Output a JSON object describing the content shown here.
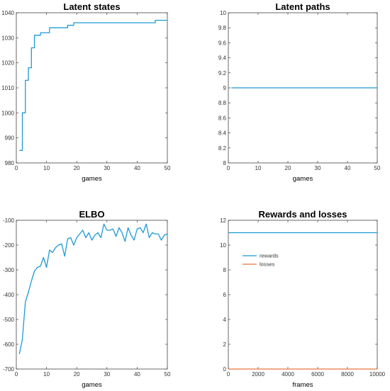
{
  "colors": {
    "blue": "#1f9ad6",
    "orange": "#e8743b"
  },
  "chart_data": [
    {
      "type": "line",
      "title": "Latent states",
      "xlabel": "games",
      "ylabel": "",
      "xlim": [
        0,
        50
      ],
      "ylim": [
        980,
        1040
      ],
      "xticks": [
        0,
        10,
        20,
        30,
        40,
        50
      ],
      "yticks": [
        980,
        990,
        1000,
        1010,
        1020,
        1030,
        1040
      ],
      "ytick_labels": [
        "980",
        "990",
        "1000",
        "1010",
        "1020",
        "1030",
        "1040"
      ],
      "grid": false,
      "step": true,
      "series": [
        {
          "color": "#1f9ad6",
          "x": [
            1,
            2,
            3,
            4,
            5,
            6,
            7,
            8,
            9,
            10,
            11,
            12,
            13,
            14,
            15,
            16,
            17,
            18,
            19,
            20,
            21,
            22,
            23,
            24,
            25,
            26,
            27,
            28,
            29,
            30,
            31,
            32,
            33,
            34,
            35,
            36,
            37,
            38,
            39,
            40,
            41,
            42,
            43,
            44,
            45,
            46,
            47,
            48,
            49,
            50
          ],
          "y": [
            985,
            1000,
            1013,
            1018,
            1026,
            1031,
            1031,
            1032,
            1032,
            1032,
            1034,
            1034,
            1034,
            1034,
            1034,
            1034,
            1035,
            1035,
            1036,
            1036,
            1036,
            1036,
            1036,
            1036,
            1036,
            1036,
            1036,
            1036,
            1036,
            1036,
            1036,
            1036,
            1036,
            1036,
            1036,
            1036,
            1036,
            1036,
            1036,
            1036,
            1036,
            1036,
            1036,
            1036,
            1036,
            1037,
            1037,
            1037,
            1037,
            1037
          ]
        }
      ]
    },
    {
      "type": "line",
      "title": "Latent paths",
      "xlabel": "games",
      "ylabel": "",
      "xlim": [
        0,
        50
      ],
      "ylim": [
        8,
        10
      ],
      "xticks": [
        0,
        10,
        20,
        30,
        40,
        50
      ],
      "yticks": [
        8,
        8.2,
        8.4,
        8.6,
        8.8,
        9,
        9.2,
        9.4,
        9.6,
        9.8,
        10
      ],
      "ytick_labels": [
        "8",
        "8.2",
        "8.4",
        "8.6",
        "8.8",
        "9",
        "9.2",
        "9.4",
        "9.6",
        "9.8",
        "10"
      ],
      "grid": false,
      "series": [
        {
          "color": "#1f9ad6",
          "x": [
            1,
            50
          ],
          "y": [
            9,
            9
          ]
        }
      ]
    },
    {
      "type": "line",
      "title": "ELBO",
      "xlabel": "games",
      "ylabel": "",
      "xlim": [
        0,
        50
      ],
      "ylim": [
        -700,
        -100
      ],
      "xticks": [
        0,
        10,
        20,
        30,
        40,
        50
      ],
      "yticks": [
        -700,
        -600,
        -500,
        -400,
        -300,
        -200,
        -100
      ],
      "ytick_labels": [
        "-700",
        "-600",
        "-500",
        "-400",
        "-300",
        "-200",
        "-100"
      ],
      "grid": false,
      "series": [
        {
          "color": "#1f9ad6",
          "x": [
            1,
            2,
            3,
            4,
            5,
            6,
            7,
            8,
            9,
            10,
            11,
            12,
            13,
            14,
            15,
            16,
            17,
            18,
            19,
            20,
            21,
            22,
            23,
            24,
            25,
            26,
            27,
            28,
            29,
            30,
            31,
            32,
            33,
            34,
            35,
            36,
            37,
            38,
            39,
            40,
            41,
            42,
            43,
            44,
            45,
            46,
            47,
            48,
            49,
            50
          ],
          "y": [
            -640,
            -580,
            -430,
            -390,
            -345,
            -305,
            -290,
            -285,
            -250,
            -290,
            -220,
            -230,
            -210,
            -200,
            -195,
            -245,
            -175,
            -170,
            -200,
            -170,
            -155,
            -140,
            -170,
            -150,
            -180,
            -160,
            -150,
            -170,
            -115,
            -140,
            -140,
            -135,
            -165,
            -130,
            -150,
            -185,
            -130,
            -160,
            -180,
            -135,
            -130,
            -150,
            -115,
            -170,
            -150,
            -155,
            -155,
            -180,
            -160,
            -155
          ]
        }
      ]
    },
    {
      "type": "line",
      "title": "Rewards and losses",
      "xlabel": "frames",
      "ylabel": "",
      "xlim": [
        0,
        10000
      ],
      "ylim": [
        0,
        12
      ],
      "xticks": [
        0,
        2000,
        4000,
        6000,
        8000,
        10000
      ],
      "yticks": [
        0,
        2,
        4,
        6,
        8,
        10,
        12
      ],
      "ytick_labels": [
        "0",
        "2",
        "4",
        "6",
        "8",
        "10",
        "12"
      ],
      "grid": false,
      "legend": "upper-left",
      "series": [
        {
          "name": "rewards",
          "color": "#1f9ad6",
          "x": [
            0,
            10000
          ],
          "y": [
            11,
            11
          ]
        },
        {
          "name": "losses",
          "color": "#e8743b",
          "x": [
            0,
            10000
          ],
          "y": [
            0,
            0
          ]
        }
      ]
    }
  ]
}
